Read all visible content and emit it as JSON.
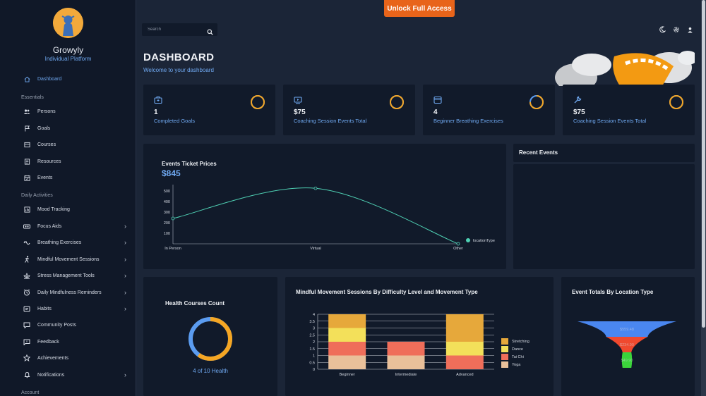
{
  "app": {
    "name": "Growyly",
    "subtitle": "Individual Platform"
  },
  "topbar": {
    "cta_label": "Unlock Full Access"
  },
  "search": {
    "placeholder": "Search"
  },
  "header": {
    "title": "DASHBOARD",
    "subtitle": "Welcome to your dashboard",
    "icons": [
      "moon-icon",
      "settings-icon",
      "user-icon"
    ]
  },
  "sidebar": {
    "dashboard": {
      "label": "Dashboard",
      "icon": "home-icon",
      "active": true
    },
    "sections": [
      {
        "title": "Essentials",
        "items": [
          {
            "label": "Persons",
            "icon": "people-icon"
          },
          {
            "label": "Goals",
            "icon": "flag-icon"
          },
          {
            "label": "Courses",
            "icon": "courses-icon"
          },
          {
            "label": "Resources",
            "icon": "resources-icon"
          },
          {
            "label": "Events",
            "icon": "calendar-icon"
          }
        ]
      },
      {
        "title": "Daily Activities",
        "items": [
          {
            "label": "Mood Tracking",
            "icon": "chart-icon"
          },
          {
            "label": "Focus Aids",
            "icon": "focus-icon",
            "chevron": true
          },
          {
            "label": "Breathing Exercises",
            "icon": "breathing-icon",
            "chevron": true
          },
          {
            "label": "Mindful Movement Sessions",
            "icon": "walk-icon",
            "chevron": true
          },
          {
            "label": "Stress Management Tools",
            "icon": "lotus-icon",
            "chevron": true
          },
          {
            "label": "Daily Mindfulness Reminders",
            "icon": "alarm-icon",
            "chevron": true
          },
          {
            "label": "Habits",
            "icon": "habits-icon",
            "chevron": true
          },
          {
            "label": "Community Posts",
            "icon": "posts-icon"
          },
          {
            "label": "Feedback",
            "icon": "feedback-icon"
          },
          {
            "label": "Achievements",
            "icon": "star-icon"
          },
          {
            "label": "Notifications",
            "icon": "bell-icon",
            "chevron": true
          }
        ]
      },
      {
        "title": "Account",
        "items": []
      }
    ]
  },
  "stats": [
    {
      "value": "1",
      "label": "Completed Goals",
      "icon": "goal-icon",
      "ring_fraction": 1.0
    },
    {
      "value": "$75",
      "label": "Coaching Session Events Total",
      "icon": "video-icon",
      "ring_fraction": 1.0
    },
    {
      "value": "4",
      "label": "Beginner Breathing Exercises",
      "icon": "card-icon",
      "ring_fraction": 0.75
    },
    {
      "value": "$75",
      "label": "Coaching Session Events Total",
      "icon": "wrench-icon",
      "ring_fraction": 1.0
    }
  ],
  "recent_events": {
    "title": "Recent Events"
  },
  "health_courses": {
    "title": "Health Courses Count",
    "caption": "4 of 10 Health"
  },
  "colors": {
    "accent": "#6fa8f0",
    "cta": "#e8641a",
    "ring": "#f5a623",
    "ring_track": "#5b9cf0",
    "line": "#4fd1b4"
  },
  "chart_data": [
    {
      "type": "line",
      "title": "Events Ticket Prices",
      "headline_value": "$845",
      "categories": [
        "In Person",
        "Virtual",
        "Other"
      ],
      "series": [
        {
          "name": "locationType",
          "values": [
            240,
            525,
            0
          ]
        }
      ],
      "ylim": [
        0,
        560
      ],
      "yticks": [
        100,
        200,
        300,
        400,
        500
      ],
      "legend": "right"
    },
    {
      "type": "bar",
      "stacked": true,
      "title": "Mindful Movement Sessions By Difficulty Level and Movement Type",
      "categories": [
        "Beginner",
        "Intermediate",
        "Advanced"
      ],
      "ylim": [
        0,
        4
      ],
      "yticks": [
        0,
        0.5,
        1,
        1.5,
        2,
        2.5,
        3,
        3.5,
        4
      ],
      "series": [
        {
          "name": "Yoga",
          "color": "#e9c09a",
          "values": [
            1,
            1,
            0
          ]
        },
        {
          "name": "Tai Chi",
          "color": "#ef6e5a",
          "values": [
            1,
            1,
            1
          ]
        },
        {
          "name": "Dance",
          "color": "#f3e05a",
          "values": [
            1,
            0,
            1
          ]
        },
        {
          "name": "Stretching",
          "color": "#e6a83b",
          "values": [
            1,
            0,
            2
          ]
        }
      ],
      "legend": "right"
    },
    {
      "type": "funnel",
      "title": "Event Totals By Location Type",
      "stages": [
        {
          "label": "$559.48",
          "value": 559.48,
          "color": "#4a87f0"
        },
        {
          "label": "$234.90",
          "value": 234.9,
          "color": "#f0492e"
        },
        {
          "label": "$49.90",
          "value": 49.9,
          "color": "#3bd43b"
        }
      ]
    }
  ]
}
